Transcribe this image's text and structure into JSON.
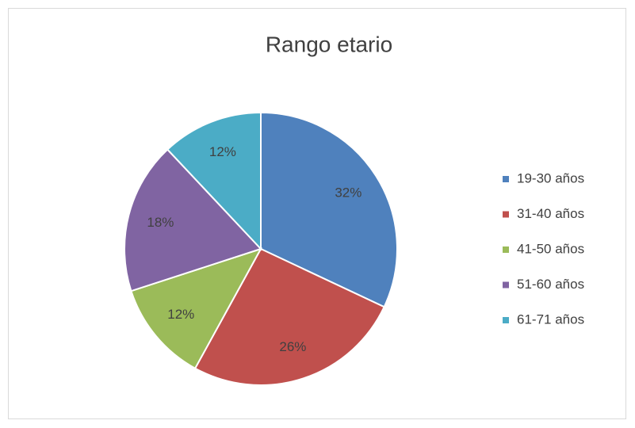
{
  "chart_data": {
    "type": "pie",
    "title": "Rango etario",
    "categories": [
      "19-30 años",
      "31-40 años",
      "41-50 años",
      "51-60 años",
      "61-71 años"
    ],
    "values": [
      32,
      26,
      12,
      18,
      12
    ],
    "value_labels": [
      "32%",
      "26%",
      "12%",
      "18%",
      "12%"
    ],
    "colors": [
      "#4f81bd",
      "#c0504d",
      "#9bbb59",
      "#8064a2",
      "#4bacc6"
    ],
    "legend": "right"
  }
}
